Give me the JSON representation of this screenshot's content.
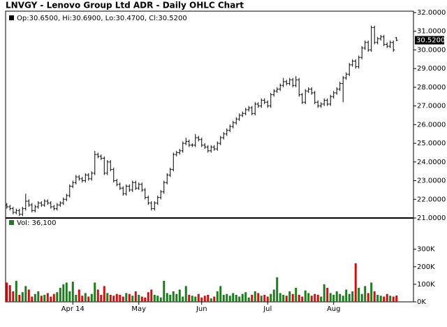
{
  "chart_data": {
    "type": "ohlc",
    "title": "LNVGY - Lenovo Group Ltd ADR - Daily OHLC Chart",
    "legend_text": "Op:30.6500, Hi:30.6900, Lo:30.4700, Cl:30.5200",
    "last_label": "30.5200",
    "color": "#000000",
    "xlim": [
      -0.4,
      129.4
    ],
    "xticks": [
      {
        "value": 21,
        "label": "Apr 14"
      },
      {
        "value": 42,
        "label": "May"
      },
      {
        "value": 62,
        "label": "Jun"
      },
      {
        "value": 83,
        "label": "Jul"
      },
      {
        "value": 104,
        "label": "Aug"
      }
    ],
    "ylim": [
      21,
      32
    ],
    "yticks": [
      {
        "value": 21,
        "label": "21.0000"
      },
      {
        "value": 22,
        "label": "22.0000"
      },
      {
        "value": 23,
        "label": "23.0000"
      },
      {
        "value": 24,
        "label": "24.0000"
      },
      {
        "value": 25,
        "label": "25.0000"
      },
      {
        "value": 26,
        "label": "26.0000"
      },
      {
        "value": 27,
        "label": "27.0000"
      },
      {
        "value": 28,
        "label": "28.0000"
      },
      {
        "value": 29,
        "label": "29.0000"
      },
      {
        "value": 30,
        "label": "30.0000"
      },
      {
        "value": 31,
        "label": "31.0000"
      },
      {
        "value": 32,
        "label": "32.0000"
      }
    ],
    "open": [
      21.7,
      21.6,
      21.5,
      21.3,
      21.4,
      21.2,
      21.5,
      21.9,
      21.7,
      21.4,
      21.6,
      21.8,
      21.7,
      21.9,
      21.8,
      21.6,
      21.5,
      21.7,
      21.8,
      22.0,
      22.2,
      22.7,
      22.9,
      23.2,
      23.1,
      23.0,
      23.3,
      23.1,
      23.4,
      24.4,
      24.3,
      24.2,
      23.4,
      24.0,
      23.6,
      23.0,
      22.8,
      22.6,
      22.3,
      22.7,
      22.5,
      22.9,
      22.6,
      22.8,
      22.5,
      22.1,
      21.8,
      21.5,
      21.8,
      22.1,
      22.4,
      22.9,
      23.3,
      23.6,
      24.4,
      24.5,
      24.6,
      25.0,
      25.1,
      24.9,
      24.9,
      25.3,
      25.2,
      24.9,
      24.8,
      24.6,
      24.8,
      24.7,
      25.0,
      25.3,
      25.5,
      25.7,
      25.9,
      26.1,
      26.3,
      26.5,
      26.6,
      26.8,
      26.9,
      26.6,
      27.1,
      27.0,
      27.3,
      27.2,
      27.0,
      27.6,
      27.8,
      27.9,
      28.1,
      28.3,
      28.2,
      28.4,
      28.1,
      28.4,
      27.6,
      27.2,
      27.8,
      27.9,
      27.7,
      27.2,
      27.0,
      27.1,
      27.3,
      27.1,
      27.5,
      27.7,
      27.9,
      28.2,
      28.5,
      28.7,
      29.2,
      29.4,
      29.1,
      29.6,
      30.1,
      30.4,
      30.0,
      31.2,
      30.4,
      30.6,
      30.7,
      30.3,
      30.2,
      30.4,
      30.65
    ],
    "high": [
      21.8,
      21.7,
      21.6,
      21.5,
      21.5,
      21.6,
      22.3,
      22.0,
      21.8,
      21.7,
      21.9,
      21.9,
      22.0,
      22.0,
      21.9,
      21.7,
      21.8,
      21.9,
      22.1,
      22.3,
      22.8,
      23.0,
      23.3,
      23.3,
      23.2,
      23.4,
      23.4,
      23.5,
      24.6,
      24.5,
      24.4,
      24.3,
      24.1,
      24.1,
      23.7,
      23.1,
      22.9,
      22.7,
      22.8,
      22.8,
      23.0,
      23.0,
      22.9,
      22.9,
      22.6,
      22.2,
      21.9,
      21.9,
      22.2,
      22.5,
      23.0,
      23.4,
      23.7,
      24.5,
      24.6,
      24.7,
      25.1,
      25.3,
      25.2,
      25.0,
      25.5,
      25.4,
      25.3,
      25.0,
      24.9,
      24.9,
      24.9,
      25.1,
      25.4,
      25.6,
      25.8,
      26.0,
      26.2,
      26.4,
      26.6,
      26.7,
      26.9,
      27.0,
      27.0,
      27.2,
      27.2,
      27.4,
      27.4,
      27.3,
      27.7,
      27.9,
      28.0,
      28.2,
      28.5,
      28.4,
      28.5,
      28.5,
      28.6,
      28.5,
      27.7,
      27.9,
      28.0,
      28.0,
      27.8,
      27.3,
      27.2,
      27.4,
      27.4,
      27.6,
      27.8,
      28.0,
      28.3,
      28.6,
      28.8,
      29.3,
      29.5,
      29.5,
      29.7,
      30.2,
      30.5,
      30.5,
      31.3,
      31.3,
      30.7,
      30.8,
      30.8,
      30.4,
      30.5,
      30.5,
      30.69
    ],
    "low": [
      21.5,
      21.4,
      21.2,
      21.2,
      21.1,
      21.1,
      21.4,
      21.6,
      21.3,
      21.3,
      21.5,
      21.6,
      21.6,
      21.7,
      21.5,
      21.4,
      21.4,
      21.6,
      21.7,
      21.9,
      22.1,
      22.6,
      22.8,
      23.0,
      22.9,
      22.9,
      23.0,
      23.0,
      23.3,
      24.2,
      24.1,
      23.3,
      23.3,
      23.5,
      22.9,
      22.7,
      22.5,
      22.2,
      22.2,
      22.4,
      22.4,
      22.5,
      22.5,
      22.4,
      22.0,
      21.7,
      21.4,
      21.4,
      21.7,
      22.0,
      22.3,
      22.8,
      23.2,
      23.5,
      24.3,
      24.4,
      24.5,
      24.9,
      24.8,
      24.8,
      24.8,
      25.1,
      24.8,
      24.7,
      24.5,
      24.5,
      24.6,
      24.6,
      24.9,
      25.2,
      25.4,
      25.6,
      25.8,
      26.0,
      26.2,
      26.4,
      26.5,
      26.7,
      26.5,
      26.5,
      26.9,
      26.9,
      27.1,
      26.9,
      26.9,
      27.5,
      27.7,
      27.8,
      28.0,
      28.1,
      28.1,
      28.0,
      28.0,
      27.5,
      27.1,
      27.1,
      27.7,
      27.6,
      27.1,
      26.9,
      26.9,
      27.0,
      27.0,
      27.0,
      27.4,
      27.6,
      27.8,
      27.2,
      28.4,
      28.6,
      29.1,
      29.0,
      29.0,
      29.5,
      30.0,
      29.9,
      29.9,
      30.3,
      30.3,
      30.5,
      30.2,
      30.1,
      30.1,
      29.9,
      30.47
    ],
    "close": [
      21.6,
      21.5,
      21.3,
      21.4,
      21.2,
      21.5,
      21.9,
      21.7,
      21.4,
      21.6,
      21.8,
      21.7,
      21.9,
      21.8,
      21.6,
      21.5,
      21.7,
      21.8,
      22.0,
      22.2,
      22.7,
      22.9,
      23.2,
      23.1,
      23.0,
      23.3,
      23.1,
      23.4,
      24.4,
      24.3,
      24.2,
      23.4,
      24.0,
      23.6,
      23.0,
      22.8,
      22.6,
      22.3,
      22.7,
      22.5,
      22.9,
      22.6,
      22.8,
      22.5,
      22.1,
      21.8,
      21.5,
      21.8,
      22.1,
      22.4,
      22.9,
      23.3,
      23.6,
      24.4,
      24.5,
      24.6,
      25.0,
      25.1,
      24.9,
      24.9,
      25.3,
      25.2,
      24.9,
      24.8,
      24.6,
      24.8,
      24.7,
      25.0,
      25.3,
      25.5,
      25.7,
      25.9,
      26.1,
      26.3,
      26.5,
      26.6,
      26.8,
      26.9,
      26.6,
      27.1,
      27.0,
      27.3,
      27.2,
      27.0,
      27.6,
      27.8,
      27.9,
      28.1,
      28.3,
      28.2,
      28.4,
      28.1,
      28.4,
      27.6,
      27.2,
      27.8,
      27.9,
      27.7,
      27.2,
      27.0,
      27.1,
      27.3,
      27.1,
      27.5,
      27.7,
      27.9,
      28.2,
      28.5,
      28.7,
      29.2,
      29.4,
      29.1,
      29.6,
      30.1,
      30.4,
      30.0,
      31.2,
      30.4,
      30.6,
      30.7,
      30.3,
      30.2,
      30.4,
      30.0,
      30.52
    ],
    "volume": {
      "legend": "Vol: 36,100",
      "up_color": "#1e7b1e",
      "down_color": "#cc1111",
      "ylim": [
        0,
        470000
      ],
      "yticks": [
        {
          "value": 0,
          "label": "0K"
        },
        {
          "value": 100000,
          "label": "100K"
        },
        {
          "value": 200000,
          "label": "200K"
        },
        {
          "value": 300000,
          "label": "300K"
        }
      ],
      "values": [
        110000,
        95000,
        60000,
        120000,
        40000,
        55000,
        90000,
        70000,
        30000,
        45000,
        60000,
        35000,
        40000,
        50000,
        30000,
        45000,
        55000,
        80000,
        100000,
        110000,
        60000,
        115000,
        40000,
        70000,
        35000,
        50000,
        30000,
        45000,
        110000,
        70000,
        40000,
        90000,
        50000,
        40000,
        35000,
        45000,
        40000,
        30000,
        50000,
        45000,
        35000,
        60000,
        40000,
        30000,
        25000,
        55000,
        70000,
        40000,
        35000,
        25000,
        120000,
        50000,
        40000,
        60000,
        45000,
        70000,
        30000,
        90000,
        40000,
        35000,
        30000,
        45000,
        25000,
        35000,
        40000,
        20000,
        30000,
        60000,
        90000,
        40000,
        45000,
        35000,
        50000,
        40000,
        30000,
        45000,
        55000,
        25000,
        40000,
        60000,
        50000,
        35000,
        40000,
        30000,
        45000,
        70000,
        140000,
        50000,
        40000,
        35000,
        60000,
        45000,
        80000,
        40000,
        30000,
        65000,
        50000,
        35000,
        45000,
        40000,
        30000,
        100000,
        80000,
        50000,
        40000,
        60000,
        45000,
        35000,
        70000,
        45000,
        60000,
        220000,
        80000,
        45000,
        90000,
        50000,
        110000,
        60000,
        40000,
        35000,
        30000,
        45000,
        35000,
        30000,
        36100
      ]
    }
  }
}
